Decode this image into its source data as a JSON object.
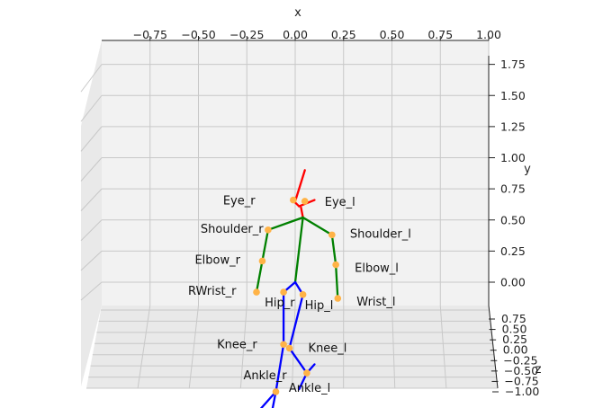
{
  "chart_data": {
    "type": "scatter",
    "projection": "3d",
    "xlabel": "x",
    "ylabel": "y",
    "zlabel": "z",
    "xlim": [
      -1.0,
      1.0
    ],
    "ylim": [
      -0.2,
      1.85
    ],
    "zlim": [
      -1.0,
      0.75
    ],
    "x_ticks": [
      "−0.75",
      "−0.50",
      "−0.25",
      "0.00",
      "0.25",
      "0.50",
      "0.75",
      "1.00"
    ],
    "x_tick_values": [
      -0.75,
      -0.5,
      -0.25,
      0.0,
      0.25,
      0.5,
      0.75,
      1.0
    ],
    "y_ticks": [
      "0.00",
      "0.25",
      "0.50",
      "0.75",
      "1.00",
      "1.25",
      "1.50",
      "1.75"
    ],
    "y_tick_values": [
      0.0,
      0.25,
      0.5,
      0.75,
      1.0,
      1.25,
      1.5,
      1.75
    ],
    "z_ticks": [
      "0.75",
      "0.50",
      "0.25",
      "0.00",
      "−0.25",
      "−0.50",
      "−0.75",
      "−1.00"
    ],
    "z_tick_values": [
      0.75,
      0.5,
      0.25,
      0.0,
      -0.25,
      -0.5,
      -0.75,
      -1.0
    ],
    "grid": true,
    "colors": {
      "head": "#ff0000",
      "arms": "#008000",
      "legs": "#0000ff",
      "joints": "#ffb347",
      "pane": "#f2f2f2",
      "grid": "#c8c8c8"
    },
    "joints": [
      {
        "name": "Eye_r",
        "x": -0.01,
        "y": 0.66,
        "z": 0.0
      },
      {
        "name": "Eye_l",
        "x": 0.05,
        "y": 0.65,
        "z": 0.0
      },
      {
        "name": "Shoulder_r",
        "x": -0.14,
        "y": 0.42,
        "z": 0.0
      },
      {
        "name": "Shoulder_l",
        "x": 0.19,
        "y": 0.38,
        "z": 0.0
      },
      {
        "name": "Elbow_r",
        "x": -0.17,
        "y": 0.17,
        "z": 0.0
      },
      {
        "name": "Elbow_l",
        "x": 0.21,
        "y": 0.14,
        "z": 0.0
      },
      {
        "name": "RWrist_r",
        "x": -0.2,
        "y": -0.08,
        "z": 0.0
      },
      {
        "name": "Wrist_l",
        "x": 0.22,
        "y": -0.13,
        "z": 0.0
      },
      {
        "name": "Hip_r",
        "x": -0.06,
        "y": -0.08,
        "z": 0.0
      },
      {
        "name": "Hip_l",
        "x": 0.04,
        "y": -0.1,
        "z": 0.0
      },
      {
        "name": "Knee_r",
        "x": -0.06,
        "y": -0.5,
        "z": 0.0
      },
      {
        "name": "Knee_l",
        "x": -0.03,
        "y": -0.53,
        "z": 0.0
      },
      {
        "name": "Ankle_r",
        "x": -0.1,
        "y": -0.88,
        "z": 0.0
      },
      {
        "name": "Ankle_l",
        "x": 0.06,
        "y": -0.73,
        "z": 0.0
      }
    ],
    "bones": [
      {
        "group": "head",
        "points": [
          [
            0.05,
            0.9
          ],
          [
            0.0,
            0.65
          ]
        ]
      },
      {
        "group": "head",
        "points": [
          [
            -0.02,
            0.67
          ],
          [
            0.02,
            0.61
          ]
        ]
      },
      {
        "group": "head",
        "points": [
          [
            0.02,
            0.61
          ],
          [
            0.1,
            0.66
          ]
        ]
      },
      {
        "group": "head",
        "points": [
          [
            0.03,
            0.6
          ],
          [
            0.04,
            0.52
          ]
        ]
      },
      {
        "group": "arms",
        "points": [
          [
            0.04,
            0.52
          ],
          [
            -0.14,
            0.42
          ]
        ]
      },
      {
        "group": "arms",
        "points": [
          [
            0.04,
            0.52
          ],
          [
            0.19,
            0.38
          ]
        ]
      },
      {
        "group": "arms",
        "points": [
          [
            -0.14,
            0.42
          ],
          [
            -0.17,
            0.17
          ],
          [
            -0.2,
            -0.08
          ]
        ]
      },
      {
        "group": "arms",
        "points": [
          [
            0.19,
            0.38
          ],
          [
            0.21,
            0.14
          ],
          [
            0.22,
            -0.13
          ]
        ]
      },
      {
        "group": "arms",
        "points": [
          [
            0.04,
            0.52
          ],
          [
            0.0,
            0.0
          ]
        ]
      },
      {
        "group": "legs",
        "points": [
          [
            0.0,
            0.0
          ],
          [
            -0.06,
            -0.08
          ]
        ]
      },
      {
        "group": "legs",
        "points": [
          [
            0.0,
            0.0
          ],
          [
            0.04,
            -0.1
          ]
        ]
      },
      {
        "group": "legs",
        "points": [
          [
            -0.06,
            -0.08
          ],
          [
            -0.06,
            -0.5
          ]
        ]
      },
      {
        "group": "legs",
        "points": [
          [
            0.04,
            -0.1
          ],
          [
            -0.03,
            -0.53
          ],
          [
            0.06,
            -0.73
          ]
        ]
      },
      {
        "group": "legs",
        "points": [
          [
            -0.06,
            -0.5
          ],
          [
            -0.1,
            -0.88
          ]
        ]
      },
      {
        "group": "legs",
        "points": [
          [
            -0.1,
            -0.88
          ],
          [
            -0.12,
            -1.04
          ]
        ]
      },
      {
        "group": "legs",
        "points": [
          [
            -0.1,
            -0.88
          ],
          [
            -0.18,
            -1.02
          ]
        ]
      },
      {
        "group": "legs",
        "points": [
          [
            0.06,
            -0.73
          ],
          [
            0.1,
            -0.66
          ]
        ]
      },
      {
        "group": "legs",
        "points": [
          [
            0.06,
            -0.73
          ],
          [
            0.02,
            -0.86
          ]
        ]
      }
    ]
  }
}
